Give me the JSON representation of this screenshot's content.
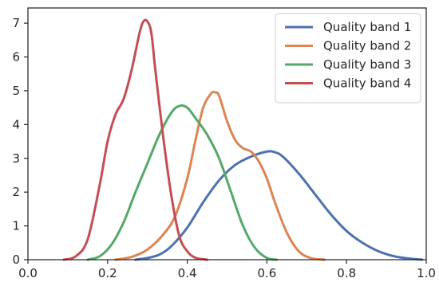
{
  "chart_data": {
    "type": "line",
    "title": "",
    "xlabel": "",
    "ylabel": "",
    "xlim": [
      0.0,
      1.0
    ],
    "ylim": [
      0,
      7.45
    ],
    "grid": false,
    "legend_position": "top-right",
    "x_ticks": [
      {
        "value": 0.0,
        "label": "0.0"
      },
      {
        "value": 0.2,
        "label": "0.2"
      },
      {
        "value": 0.4,
        "label": "0.4"
      },
      {
        "value": 0.6,
        "label": "0.6"
      },
      {
        "value": 0.8,
        "label": "0.8"
      },
      {
        "value": 1.0,
        "label": "1.0"
      }
    ],
    "y_ticks": [
      {
        "value": 0,
        "label": "0"
      },
      {
        "value": 1,
        "label": "1"
      },
      {
        "value": 2,
        "label": "2"
      },
      {
        "value": 3,
        "label": "3"
      },
      {
        "value": 4,
        "label": "4"
      },
      {
        "value": 5,
        "label": "5"
      },
      {
        "value": 6,
        "label": "6"
      },
      {
        "value": 7,
        "label": "7"
      }
    ],
    "series": [
      {
        "name": "Quality band 1",
        "color": "#4c72b0",
        "x": [
          0.27,
          0.3,
          0.33,
          0.36,
          0.4,
          0.44,
          0.48,
          0.52,
          0.56,
          0.6,
          0.62,
          0.64,
          0.68,
          0.72,
          0.76,
          0.8,
          0.84,
          0.88,
          0.92,
          0.96,
          0.99
        ],
        "y": [
          0.0,
          0.05,
          0.15,
          0.4,
          0.95,
          1.7,
          2.35,
          2.8,
          3.05,
          3.2,
          3.18,
          3.05,
          2.55,
          1.95,
          1.35,
          0.85,
          0.5,
          0.25,
          0.1,
          0.03,
          0.0
        ]
      },
      {
        "name": "Quality band 2",
        "color": "#dd8452",
        "x": [
          0.22,
          0.26,
          0.3,
          0.34,
          0.37,
          0.4,
          0.42,
          0.44,
          0.46,
          0.47,
          0.48,
          0.5,
          0.52,
          0.54,
          0.56,
          0.58,
          0.6,
          0.62,
          0.65,
          0.68,
          0.71,
          0.745
        ],
        "y": [
          0.0,
          0.08,
          0.3,
          0.75,
          1.3,
          2.4,
          3.5,
          4.5,
          4.92,
          4.95,
          4.85,
          4.1,
          3.55,
          3.3,
          3.2,
          2.9,
          2.4,
          1.7,
          0.8,
          0.25,
          0.05,
          0.0
        ]
      },
      {
        "name": "Quality band 3",
        "color": "#55a868",
        "x": [
          0.15,
          0.18,
          0.21,
          0.24,
          0.27,
          0.3,
          0.33,
          0.36,
          0.38,
          0.4,
          0.42,
          0.45,
          0.48,
          0.51,
          0.54,
          0.57,
          0.6,
          0.625
        ],
        "y": [
          0.0,
          0.1,
          0.45,
          1.1,
          2.0,
          2.85,
          3.7,
          4.35,
          4.55,
          4.5,
          4.2,
          3.7,
          3.0,
          2.0,
          1.0,
          0.35,
          0.05,
          0.0
        ]
      },
      {
        "name": "Quality band 4",
        "color": "#c44e52",
        "x": [
          0.09,
          0.12,
          0.15,
          0.18,
          0.2,
          0.22,
          0.24,
          0.26,
          0.28,
          0.29,
          0.3,
          0.31,
          0.32,
          0.34,
          0.36,
          0.38,
          0.4,
          0.42,
          0.45
        ],
        "y": [
          0.0,
          0.1,
          0.6,
          2.2,
          3.5,
          4.3,
          4.75,
          5.6,
          6.7,
          7.05,
          7.05,
          6.7,
          5.6,
          3.6,
          1.9,
          0.7,
          0.25,
          0.06,
          0.0
        ]
      }
    ]
  }
}
